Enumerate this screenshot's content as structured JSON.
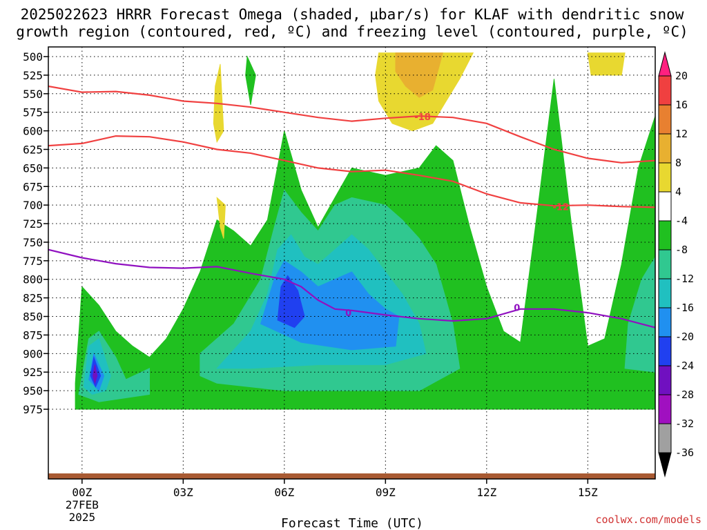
{
  "chart_data": {
    "type": "heatmap",
    "title_line1": "2025022623 HRRR Forecast Omega (shaded, µbar/s) for KLAF with dendritic snow",
    "title_line2": "growth region (contoured, red, ºC) and freezing level (contoured, purple, ºC)",
    "xlabel": "Forecast Time (UTC)",
    "credit": "coolwx.com/models",
    "x_hours": [
      -1,
      17
    ],
    "x_ticks": [
      {
        "h": 0,
        "label": "00Z",
        "sub1": "27FEB",
        "sub2": "2025"
      },
      {
        "h": 3,
        "label": "03Z"
      },
      {
        "h": 6,
        "label": "06Z"
      },
      {
        "h": 9,
        "label": "09Z"
      },
      {
        "h": 12,
        "label": "12Z"
      },
      {
        "h": 15,
        "label": "15Z"
      }
    ],
    "y_levels": [
      "500",
      "525",
      "550",
      "575",
      "600",
      "625",
      "650",
      "675",
      "700",
      "725",
      "750",
      "775",
      "800",
      "825",
      "850",
      "875",
      "900",
      "925",
      "950",
      "975"
    ],
    "colorbar": {
      "labels": [
        "20",
        "16",
        "12",
        "8",
        "4",
        "-4",
        "-8",
        "-12",
        "-16",
        "-20",
        "-24",
        "-28",
        "-32",
        "-36"
      ],
      "colors": [
        "#ff2080",
        "#f04040",
        "#e88030",
        "#e8b030",
        "#e8d830",
        "#ffffff",
        "#20c020",
        "#30c890",
        "#20c0c0",
        "#2090f0",
        "#2040f0",
        "#7010c0",
        "#a010c0",
        "#a0a0a0",
        "#000000"
      ]
    },
    "omega_fills": [
      {
        "level": "-4",
        "color": "#20c020",
        "points": [
          [
            -0.2,
            940
          ],
          [
            0,
            810
          ],
          [
            0.5,
            835
          ],
          [
            1,
            870
          ],
          [
            1.5,
            890
          ],
          [
            2,
            905
          ],
          [
            2.5,
            880
          ],
          [
            3,
            840
          ],
          [
            3.5,
            790
          ],
          [
            4,
            720
          ],
          [
            4.5,
            735
          ],
          [
            5,
            755
          ],
          [
            5.5,
            720
          ],
          [
            6,
            600
          ],
          [
            6.5,
            680
          ],
          [
            7,
            730
          ],
          [
            7.5,
            690
          ],
          [
            8,
            650
          ],
          [
            9,
            660
          ],
          [
            10,
            650
          ],
          [
            10.5,
            620
          ],
          [
            11,
            640
          ],
          [
            11.5,
            730
          ],
          [
            12,
            810
          ],
          [
            12.5,
            870
          ],
          [
            13,
            885
          ],
          [
            13.5,
            710
          ],
          [
            14,
            530
          ],
          [
            14.5,
            720
          ],
          [
            15,
            890
          ],
          [
            15.5,
            880
          ],
          [
            16,
            780
          ],
          [
            16.5,
            650
          ],
          [
            17,
            580
          ],
          [
            17,
            975
          ],
          [
            -0.2,
            975
          ]
        ]
      },
      {
        "level": "-4",
        "color": "#20c020",
        "points": [
          [
            4.9,
            500
          ],
          [
            5.15,
            525
          ],
          [
            5.0,
            565
          ],
          [
            4.85,
            525
          ]
        ]
      },
      {
        "level": "-8",
        "color": "#30c890",
        "points": [
          [
            -0.1,
            955
          ],
          [
            0.2,
            880
          ],
          [
            0.5,
            870
          ],
          [
            1,
            905
          ],
          [
            1.3,
            935
          ],
          [
            2,
            920
          ],
          [
            2,
            955
          ],
          [
            0.5,
            965
          ]
        ]
      },
      {
        "level": "-8",
        "color": "#30c890",
        "points": [
          [
            3.5,
            900
          ],
          [
            4.5,
            860
          ],
          [
            5.3,
            800
          ],
          [
            5.7,
            730
          ],
          [
            6,
            680
          ],
          [
            6.5,
            710
          ],
          [
            7,
            735
          ],
          [
            7.5,
            700
          ],
          [
            8,
            690
          ],
          [
            9,
            700
          ],
          [
            9.5,
            720
          ],
          [
            10,
            745
          ],
          [
            10.5,
            780
          ],
          [
            11,
            860
          ],
          [
            11.2,
            920
          ],
          [
            10,
            950
          ],
          [
            8,
            950
          ],
          [
            6,
            950
          ],
          [
            4,
            940
          ],
          [
            3.5,
            930
          ]
        ]
      },
      {
        "level": "-8",
        "color": "#30c890",
        "points": [
          [
            17,
            770
          ],
          [
            16.6,
            800
          ],
          [
            16.2,
            860
          ],
          [
            16.1,
            920
          ],
          [
            17,
            925
          ]
        ]
      },
      {
        "level": "-12",
        "color": "#20c0c0",
        "points": [
          [
            0.05,
            945
          ],
          [
            0.2,
            890
          ],
          [
            0.5,
            880
          ],
          [
            0.85,
            930
          ],
          [
            0.7,
            950
          ],
          [
            0.3,
            955
          ]
        ]
      },
      {
        "level": "-12",
        "color": "#20c0c0",
        "points": [
          [
            4,
            920
          ],
          [
            5,
            870
          ],
          [
            5.5,
            820
          ],
          [
            5.8,
            760
          ],
          [
            6.2,
            740
          ],
          [
            6.6,
            770
          ],
          [
            7,
            780
          ],
          [
            7.5,
            760
          ],
          [
            8,
            740
          ],
          [
            8.5,
            760
          ],
          [
            9,
            790
          ],
          [
            9.5,
            820
          ],
          [
            10,
            860
          ],
          [
            10.2,
            900
          ],
          [
            9,
            915
          ],
          [
            7,
            915
          ],
          [
            5,
            920
          ]
        ]
      },
      {
        "level": "-16",
        "color": "#2090f0",
        "points": [
          [
            0.2,
            935
          ],
          [
            0.35,
            900
          ],
          [
            0.65,
            930
          ],
          [
            0.5,
            950
          ]
        ]
      },
      {
        "level": "-16",
        "color": "#2090f0",
        "points": [
          [
            5.3,
            860
          ],
          [
            5.7,
            800
          ],
          [
            6,
            775
          ],
          [
            6.5,
            790
          ],
          [
            7,
            810
          ],
          [
            7.5,
            800
          ],
          [
            8,
            790
          ],
          [
            8.5,
            820
          ],
          [
            9,
            840
          ],
          [
            9.4,
            850
          ],
          [
            9.3,
            890
          ],
          [
            8,
            895
          ],
          [
            6.5,
            885
          ]
        ]
      },
      {
        "level": "-20",
        "color": "#2040f0",
        "points": [
          [
            0.25,
            930
          ],
          [
            0.35,
            905
          ],
          [
            0.55,
            930
          ],
          [
            0.4,
            945
          ]
        ]
      },
      {
        "level": "-20",
        "color": "#2040f0",
        "points": [
          [
            5.8,
            855
          ],
          [
            5.9,
            810
          ],
          [
            6.1,
            795
          ],
          [
            6.4,
            815
          ],
          [
            6.6,
            850
          ],
          [
            6.3,
            865
          ]
        ]
      },
      {
        "level": "-24",
        "color": "#7010c0",
        "points": [
          [
            0.32,
            930
          ],
          [
            0.38,
            915
          ],
          [
            0.45,
            930
          ],
          [
            0.38,
            940
          ]
        ]
      },
      {
        "level": "4",
        "color": "#e8d830",
        "points": [
          [
            4.0,
            690
          ],
          [
            4.25,
            700
          ],
          [
            4.2,
            745
          ],
          [
            4.1,
            730
          ]
        ]
      },
      {
        "level": "4",
        "color": "#e8d830",
        "points": [
          [
            4.1,
            510
          ],
          [
            4.2,
            600
          ],
          [
            4.0,
            615
          ],
          [
            3.9,
            590
          ],
          [
            3.95,
            540
          ]
        ]
      },
      {
        "level": "4",
        "color": "#e8d830",
        "points": [
          [
            8.8,
            495
          ],
          [
            11.6,
            495
          ],
          [
            11.2,
            530
          ],
          [
            10.8,
            560
          ],
          [
            10.4,
            590
          ],
          [
            9.8,
            600
          ],
          [
            9.2,
            590
          ],
          [
            8.8,
            560
          ],
          [
            8.7,
            525
          ]
        ]
      },
      {
        "level": "4",
        "color": "#e8d830",
        "points": [
          [
            15,
            495
          ],
          [
            16.1,
            495
          ],
          [
            16,
            525
          ],
          [
            15.1,
            525
          ]
        ]
      },
      {
        "level": "8",
        "color": "#e8b030",
        "points": [
          [
            9.3,
            495
          ],
          [
            10.7,
            495
          ],
          [
            10.4,
            545
          ],
          [
            10,
            555
          ],
          [
            9.6,
            540
          ],
          [
            9.3,
            520
          ]
        ]
      }
    ],
    "dgz_contours": [
      {
        "label": "-18",
        "points": [
          [
            -1,
            540
          ],
          [
            0,
            548
          ],
          [
            1,
            547
          ],
          [
            2,
            552
          ],
          [
            3,
            560
          ],
          [
            4,
            563
          ],
          [
            5,
            568
          ],
          [
            6,
            575
          ],
          [
            7,
            582
          ],
          [
            8,
            587
          ],
          [
            9,
            583
          ],
          [
            10,
            580
          ],
          [
            11,
            582
          ],
          [
            12,
            590
          ],
          [
            13,
            608
          ],
          [
            14,
            625
          ],
          [
            15,
            637
          ],
          [
            16,
            643
          ],
          [
            17,
            640
          ]
        ]
      },
      {
        "label": "-12",
        "points": [
          [
            -1,
            620
          ],
          [
            0,
            617
          ],
          [
            1,
            607
          ],
          [
            2,
            608
          ],
          [
            3,
            615
          ],
          [
            4,
            625
          ],
          [
            5,
            630
          ],
          [
            6,
            640
          ],
          [
            7,
            650
          ],
          [
            8,
            655
          ],
          [
            9,
            653
          ],
          [
            10,
            660
          ],
          [
            11,
            668
          ],
          [
            12,
            685
          ],
          [
            13,
            697
          ],
          [
            14,
            701
          ],
          [
            15,
            700
          ],
          [
            16,
            702
          ],
          [
            17,
            703
          ]
        ]
      }
    ],
    "dgz_labels": [
      {
        "text": "-18",
        "h": 10.1,
        "p": 581
      },
      {
        "text": "-12",
        "h": 14.2,
        "p": 702
      }
    ],
    "freezing_contour": {
      "points": [
        [
          -1,
          760
        ],
        [
          0,
          771
        ],
        [
          1,
          779
        ],
        [
          2,
          784
        ],
        [
          3,
          785
        ],
        [
          4,
          783
        ],
        [
          5,
          792
        ],
        [
          6,
          800
        ],
        [
          6.5,
          810
        ],
        [
          7,
          828
        ],
        [
          7.5,
          840
        ],
        [
          8,
          842
        ],
        [
          9,
          848
        ],
        [
          10,
          853
        ],
        [
          11,
          856
        ],
        [
          12,
          853
        ],
        [
          13,
          840
        ],
        [
          14,
          840
        ],
        [
          15,
          845
        ],
        [
          16,
          853
        ],
        [
          17,
          865
        ]
      ]
    },
    "freezing_labels": [
      {
        "text": "0",
        "h": 7.9,
        "p": 845
      },
      {
        "text": "0",
        "h": 12.9,
        "p": 838
      }
    ]
  }
}
